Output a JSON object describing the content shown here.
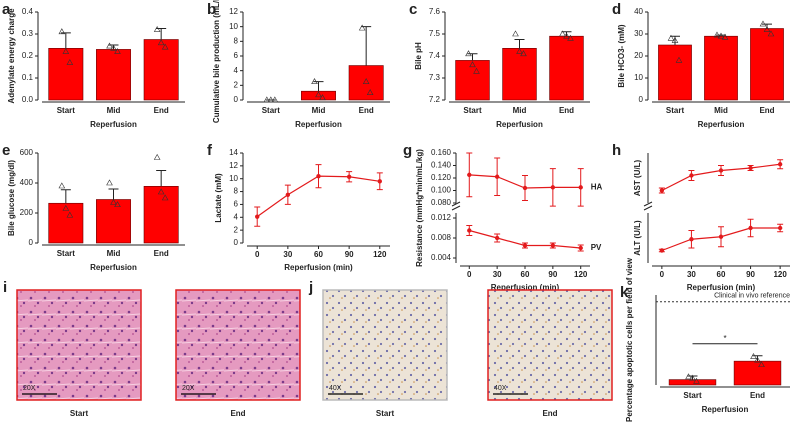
{
  "chart_data": [
    {
      "type": "bar",
      "label": "a",
      "ylabel": "Adenylate energy charge",
      "xlabel": "Reperfusion",
      "categories": [
        "Start",
        "Mid",
        "End"
      ],
      "values": [
        0.235,
        0.23,
        0.275
      ],
      "errors": [
        0.07,
        0.02,
        0.05
      ],
      "points": [
        [
          0.31,
          0.22,
          0.17
        ],
        [
          0.245,
          0.235,
          0.22
        ],
        [
          0.32,
          0.26,
          0.24
        ]
      ],
      "color": "#ff0000",
      "ylim": [
        0,
        0.4
      ],
      "yticks": [
        {
          "value": 0,
          "label": "0.0"
        },
        0.1,
        0.2,
        0.3,
        0.4
      ]
    },
    {
      "type": "bar",
      "label": "b",
      "ylabel": "Cumulative bile production (mL/kg)",
      "xlabel": "Reperfusion",
      "categories": [
        "Start",
        "Mid",
        "End"
      ],
      "values": [
        0,
        1.2,
        4.7
      ],
      "errors": [
        0,
        1.3,
        5.3
      ],
      "points": [
        [
          0,
          0,
          0
        ],
        [
          2.5,
          0.7,
          0.3
        ],
        [
          9.8,
          2.5,
          1
        ]
      ],
      "color": "#ff0000",
      "ylim": [
        0,
        12
      ],
      "yticks": [
        0,
        2,
        4,
        6,
        8,
        10,
        12
      ]
    },
    {
      "type": "bar",
      "label": "c",
      "ylabel": "Bile pH",
      "xlabel": "Reperfusion",
      "categories": [
        "Start",
        "Mid",
        "End"
      ],
      "values": [
        7.38,
        7.435,
        7.49
      ],
      "errors": [
        0.03,
        0.04,
        0.02
      ],
      "points": [
        [
          7.41,
          7.36,
          7.33
        ],
        [
          7.5,
          7.42,
          7.41
        ],
        [
          7.5,
          7.49,
          7.48
        ]
      ],
      "color": "#ff0000",
      "ylim": [
        7.2,
        7.6
      ],
      "yticks": [
        7.2,
        7.3,
        7.4,
        7.5,
        7.6
      ]
    },
    {
      "type": "bar",
      "label": "d",
      "ylabel": "Bile HCO3- (mM)",
      "xlabel": "Reperfusion",
      "categories": [
        "Start",
        "Mid",
        "End"
      ],
      "values": [
        25,
        29,
        32.5
      ],
      "errors": [
        4,
        0.5,
        2
      ],
      "points": [
        [
          28,
          27,
          18
        ],
        [
          29.5,
          29,
          28.5
        ],
        [
          34.5,
          32,
          30
        ]
      ],
      "color": "#ff0000",
      "ylim": [
        0,
        40
      ],
      "yticks": [
        0,
        10,
        20,
        30,
        40
      ]
    },
    {
      "type": "bar",
      "label": "e",
      "ylabel": "Bile glucose (mg/dl)",
      "xlabel": "Reperfusion",
      "categories": [
        "Start",
        "Mid",
        "End"
      ],
      "values": [
        265,
        290,
        378
      ],
      "errors": [
        90,
        70,
        105
      ],
      "points": [
        [
          380,
          230,
          185
        ],
        [
          400,
          270,
          255
        ],
        [
          570,
          340,
          300
        ]
      ],
      "color": "#ff0000",
      "ylim": [
        0,
        600
      ],
      "yticks": [
        0,
        200,
        400,
        600
      ]
    },
    {
      "type": "line",
      "label": "f",
      "ylabel": "Lactate (mM)",
      "xlabel": "Reperfusion (min)",
      "x": [
        0,
        30,
        60,
        90,
        120
      ],
      "xlim": [
        -10,
        130
      ],
      "xticks": [
        0,
        30,
        60,
        90,
        120
      ],
      "ylim": [
        0,
        14
      ],
      "yticks": [
        0,
        2,
        4,
        6,
        8,
        10,
        12,
        14
      ],
      "series": [
        {
          "color": "#e31a1c",
          "values": [
            4.1,
            7.5,
            10.4,
            10.3,
            9.6
          ],
          "errors": [
            1.5,
            1.5,
            1.8,
            0.8,
            1.3
          ]
        }
      ]
    },
    {
      "type": "line",
      "label": "g",
      "ylabel": "Resistance (mmHg*min/mL/kg)",
      "xlabel": "Reperfusion (min)",
      "x": [
        0,
        30,
        60,
        90,
        120
      ],
      "xlim": [
        -10,
        130
      ],
      "xticks": [
        0,
        30,
        60,
        90,
        120
      ],
      "series": [
        {
          "name": "HA",
          "color": "#e31a1c",
          "values": [
            0.125,
            0.122,
            0.104,
            0.105,
            0.105
          ],
          "errors": [
            0.035,
            0.03,
            0.02,
            0.03,
            0.03
          ],
          "ylim": [
            0.08,
            0.16
          ],
          "yticks": [
            {
              "value": 0.08,
              "label": "0.080"
            },
            {
              "value": 0.1,
              "label": "0.100"
            },
            {
              "value": 0.12,
              "label": "0.120"
            },
            {
              "value": 0.14,
              "label": "0.140"
            },
            {
              "value": 0.16,
              "label": "0.160"
            }
          ]
        },
        {
          "name": "PV",
          "color": "#e31a1c",
          "values": [
            0.0095,
            0.008,
            0.0065,
            0.0065,
            0.006
          ],
          "errors": [
            0.001,
            0.0008,
            0.0005,
            0.0005,
            0.0006
          ],
          "ylim": [
            0.003,
            0.013
          ],
          "yticks": [
            {
              "value": 0.004,
              "label": "0.004"
            },
            {
              "value": 0.008,
              "label": "0.008"
            },
            {
              "value": 0.012,
              "label": "0.012"
            }
          ]
        }
      ]
    },
    {
      "type": "line",
      "label": "h",
      "xlabel": "Reperfusion (min)",
      "x": [
        0,
        30,
        60,
        90,
        120
      ],
      "xlim": [
        -10,
        130
      ],
      "xticks": [
        0,
        30,
        60,
        90,
        120
      ],
      "series": [
        {
          "ylabel": "AST (U/L)",
          "color": "#e31a1c",
          "values": [
            50,
            110,
            130,
            140,
            155
          ],
          "errors": [
            10,
            20,
            20,
            10,
            18
          ],
          "ylim": [
            0,
            200
          ]
        },
        {
          "ylabel": "ALT (U/L)",
          "color": "#e31a1c",
          "values": [
            50,
            95,
            105,
            140,
            140
          ],
          "errors": [
            5,
            35,
            40,
            35,
            15
          ],
          "ylim": [
            0,
            200
          ]
        }
      ]
    },
    {
      "type": "micrograph",
      "label": "i",
      "stain": "he",
      "images": [
        {
          "caption": "Start",
          "scale_label": "20X"
        },
        {
          "caption": "End",
          "scale_label": "20X"
        }
      ]
    },
    {
      "type": "micrograph",
      "label": "j",
      "stain": "ihc",
      "images": [
        {
          "caption": "Start",
          "scale_label": "40X"
        },
        {
          "caption": "End",
          "scale_label": "40X"
        }
      ]
    },
    {
      "type": "bar",
      "label": "k",
      "ylabel": "Percentage apoptotic cells per field of view",
      "xlabel": "Reperfusion",
      "categories": [
        "Start",
        "End"
      ],
      "values": [
        1.2,
        5.3
      ],
      "errors": [
        0.8,
        1.2
      ],
      "points": [
        [
          1.8,
          1.5,
          0.8
        ],
        [
          6.3,
          5.5,
          4.5
        ]
      ],
      "color": "#ff0000",
      "ylim": [
        0,
        20
      ],
      "reference": {
        "value": 18.5,
        "label": "Clinical in vivo reference"
      },
      "significance": "*"
    }
  ]
}
